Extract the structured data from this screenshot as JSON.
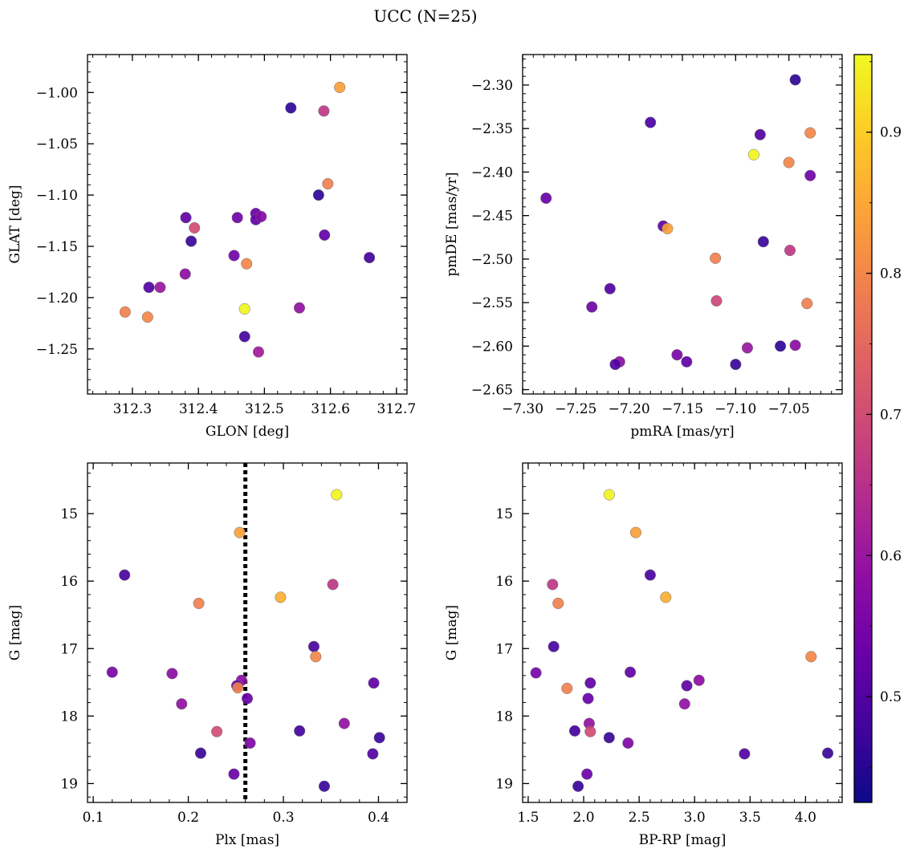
{
  "figure": {
    "title": "UCC (N=25)"
  },
  "colorbar": {
    "cmap": "plasma",
    "range": [
      0.425,
      0.955
    ],
    "ticks": [
      "0.5",
      "0.6",
      "0.7",
      "0.8",
      "0.9"
    ]
  },
  "chart_data": [
    {
      "type": "scatter",
      "xlabel": "GLON [deg]",
      "ylabel": "GLAT [deg]",
      "xlim": [
        312.232,
        312.716
      ],
      "ylim": [
        -1.294,
        -0.963
      ],
      "y_inverted": false,
      "xticks": [
        "312.3",
        "312.4",
        "312.5",
        "312.6",
        "312.7"
      ],
      "yticks": [
        "−1.00",
        "−1.05",
        "−1.10",
        "−1.15",
        "−1.20",
        "−1.25"
      ],
      "points": [
        {
          "x": 312.54,
          "y": -1.015,
          "c": 0.46
        },
        {
          "x": 312.614,
          "y": -0.995,
          "c": 0.84
        },
        {
          "x": 312.59,
          "y": -1.018,
          "c": 0.66
        },
        {
          "x": 312.596,
          "y": -1.089,
          "c": 0.79
        },
        {
          "x": 312.582,
          "y": -1.1,
          "c": 0.46
        },
        {
          "x": 312.381,
          "y": -1.122,
          "c": 0.52
        },
        {
          "x": 312.394,
          "y": -1.132,
          "c": 0.7
        },
        {
          "x": 312.389,
          "y": -1.145,
          "c": 0.47
        },
        {
          "x": 312.459,
          "y": -1.122,
          "c": 0.54
        },
        {
          "x": 312.487,
          "y": -1.118,
          "c": 0.53
        },
        {
          "x": 312.487,
          "y": -1.124,
          "c": 0.52
        },
        {
          "x": 312.495,
          "y": -1.121,
          "c": 0.57
        },
        {
          "x": 312.591,
          "y": -1.139,
          "c": 0.52
        },
        {
          "x": 312.659,
          "y": -1.161,
          "c": 0.48
        },
        {
          "x": 312.454,
          "y": -1.159,
          "c": 0.54
        },
        {
          "x": 312.473,
          "y": -1.167,
          "c": 0.8
        },
        {
          "x": 312.38,
          "y": -1.177,
          "c": 0.58
        },
        {
          "x": 312.325,
          "y": -1.19,
          "c": 0.5
        },
        {
          "x": 312.342,
          "y": -1.19,
          "c": 0.6
        },
        {
          "x": 312.47,
          "y": -1.211,
          "c": 0.95
        },
        {
          "x": 312.553,
          "y": -1.21,
          "c": 0.59
        },
        {
          "x": 312.289,
          "y": -1.214,
          "c": 0.79
        },
        {
          "x": 312.323,
          "y": -1.219,
          "c": 0.8
        },
        {
          "x": 312.47,
          "y": -1.238,
          "c": 0.48
        },
        {
          "x": 312.491,
          "y": -1.253,
          "c": 0.61
        }
      ]
    },
    {
      "type": "scatter",
      "xlabel": "pmRA [mas/yr]",
      "ylabel": "pmDE [mas/yr]",
      "xlim": [
        -7.3,
        -7.0
      ],
      "ylim": [
        -2.655,
        -2.265
      ],
      "y_inverted": false,
      "xticks": [
        "−7.30",
        "−7.25",
        "−7.20",
        "−7.15",
        "−7.10",
        "−7.05"
      ],
      "yticks": [
        "−2.30",
        "−2.35",
        "−2.40",
        "−2.45",
        "−2.50",
        "−2.55",
        "−2.60",
        "−2.65"
      ],
      "points": [
        {
          "x": -7.044,
          "y": -2.294,
          "c": 0.46
        },
        {
          "x": -7.18,
          "y": -2.343,
          "c": 0.49
        },
        {
          "x": -7.077,
          "y": -2.357,
          "c": 0.5
        },
        {
          "x": -7.03,
          "y": -2.355,
          "c": 0.8
        },
        {
          "x": -7.083,
          "y": -2.38,
          "c": 0.95
        },
        {
          "x": -7.05,
          "y": -2.389,
          "c": 0.8
        },
        {
          "x": -7.03,
          "y": -2.404,
          "c": 0.54
        },
        {
          "x": -7.278,
          "y": -2.43,
          "c": 0.53
        },
        {
          "x": -7.168,
          "y": -2.462,
          "c": 0.52
        },
        {
          "x": -7.164,
          "y": -2.465,
          "c": 0.84
        },
        {
          "x": -7.074,
          "y": -2.48,
          "c": 0.47
        },
        {
          "x": -7.049,
          "y": -2.49,
          "c": 0.66
        },
        {
          "x": -7.119,
          "y": -2.499,
          "c": 0.79
        },
        {
          "x": -7.218,
          "y": -2.534,
          "c": 0.5
        },
        {
          "x": -7.235,
          "y": -2.555,
          "c": 0.54
        },
        {
          "x": -7.118,
          "y": -2.548,
          "c": 0.69
        },
        {
          "x": -7.033,
          "y": -2.551,
          "c": 0.79
        },
        {
          "x": -7.155,
          "y": -2.61,
          "c": 0.55
        },
        {
          "x": -7.146,
          "y": -2.618,
          "c": 0.52
        },
        {
          "x": -7.209,
          "y": -2.618,
          "c": 0.58
        },
        {
          "x": -7.213,
          "y": -2.621,
          "c": 0.5
        },
        {
          "x": -7.1,
          "y": -2.621,
          "c": 0.47
        },
        {
          "x": -7.089,
          "y": -2.602,
          "c": 0.6
        },
        {
          "x": -7.058,
          "y": -2.6,
          "c": 0.46
        },
        {
          "x": -7.044,
          "y": -2.599,
          "c": 0.58
        }
      ]
    },
    {
      "type": "scatter",
      "xlabel": "Plx [mas]",
      "ylabel": "G [mag]",
      "xlim": [
        0.094,
        0.43
      ],
      "ylim": [
        19.28,
        14.25
      ],
      "y_inverted": true,
      "xticks": [
        "0.1",
        "0.2",
        "0.3",
        "0.4"
      ],
      "yticks": [
        "15",
        "16",
        "17",
        "18",
        "19"
      ],
      "vline": {
        "x": 0.26,
        "style": "dotted"
      },
      "points": [
        {
          "x": 0.356,
          "y": 14.72,
          "c": 0.95
        },
        {
          "x": 0.254,
          "y": 15.28,
          "c": 0.84
        },
        {
          "x": 0.133,
          "y": 15.91,
          "c": 0.49
        },
        {
          "x": 0.352,
          "y": 16.05,
          "c": 0.66
        },
        {
          "x": 0.211,
          "y": 16.33,
          "c": 0.79
        },
        {
          "x": 0.297,
          "y": 16.24,
          "c": 0.86
        },
        {
          "x": 0.332,
          "y": 16.97,
          "c": 0.49
        },
        {
          "x": 0.334,
          "y": 17.12,
          "c": 0.8
        },
        {
          "x": 0.12,
          "y": 17.35,
          "c": 0.55
        },
        {
          "x": 0.183,
          "y": 17.37,
          "c": 0.58
        },
        {
          "x": 0.256,
          "y": 17.47,
          "c": 0.58
        },
        {
          "x": 0.251,
          "y": 17.55,
          "c": 0.52
        },
        {
          "x": 0.252,
          "y": 17.58,
          "c": 0.79
        },
        {
          "x": 0.395,
          "y": 17.51,
          "c": 0.52
        },
        {
          "x": 0.262,
          "y": 17.74,
          "c": 0.53
        },
        {
          "x": 0.193,
          "y": 17.82,
          "c": 0.59
        },
        {
          "x": 0.364,
          "y": 18.11,
          "c": 0.59
        },
        {
          "x": 0.23,
          "y": 18.23,
          "c": 0.7
        },
        {
          "x": 0.317,
          "y": 18.22,
          "c": 0.48
        },
        {
          "x": 0.401,
          "y": 18.32,
          "c": 0.47
        },
        {
          "x": 0.265,
          "y": 18.4,
          "c": 0.56
        },
        {
          "x": 0.213,
          "y": 18.55,
          "c": 0.47
        },
        {
          "x": 0.394,
          "y": 18.56,
          "c": 0.5
        },
        {
          "x": 0.248,
          "y": 18.86,
          "c": 0.53
        },
        {
          "x": 0.343,
          "y": 19.04,
          "c": 0.47
        }
      ]
    },
    {
      "type": "scatter",
      "xlabel": "BP-RP [mag]",
      "ylabel": "G [mag]",
      "xlim": [
        1.45,
        4.33
      ],
      "ylim": [
        19.28,
        14.25
      ],
      "y_inverted": true,
      "xticks": [
        "1.5",
        "2.0",
        "2.5",
        "3.0",
        "3.5",
        "4.0"
      ],
      "yticks": [
        "15",
        "16",
        "17",
        "18",
        "19"
      ],
      "points": [
        {
          "x": 2.23,
          "y": 14.72,
          "c": 0.95
        },
        {
          "x": 2.47,
          "y": 15.28,
          "c": 0.84
        },
        {
          "x": 1.72,
          "y": 16.05,
          "c": 0.66
        },
        {
          "x": 2.6,
          "y": 15.91,
          "c": 0.49
        },
        {
          "x": 1.77,
          "y": 16.33,
          "c": 0.79
        },
        {
          "x": 2.74,
          "y": 16.24,
          "c": 0.86
        },
        {
          "x": 1.73,
          "y": 16.97,
          "c": 0.49
        },
        {
          "x": 4.05,
          "y": 17.12,
          "c": 0.8
        },
        {
          "x": 1.57,
          "y": 17.36,
          "c": 0.55
        },
        {
          "x": 2.42,
          "y": 17.35,
          "c": 0.52
        },
        {
          "x": 2.06,
          "y": 17.51,
          "c": 0.52
        },
        {
          "x": 2.93,
          "y": 17.55,
          "c": 0.52
        },
        {
          "x": 3.04,
          "y": 17.47,
          "c": 0.58
        },
        {
          "x": 1.85,
          "y": 17.59,
          "c": 0.79
        },
        {
          "x": 2.04,
          "y": 17.74,
          "c": 0.53
        },
        {
          "x": 2.91,
          "y": 17.82,
          "c": 0.59
        },
        {
          "x": 2.05,
          "y": 18.11,
          "c": 0.59
        },
        {
          "x": 2.06,
          "y": 18.23,
          "c": 0.7
        },
        {
          "x": 1.92,
          "y": 18.22,
          "c": 0.48
        },
        {
          "x": 2.23,
          "y": 18.32,
          "c": 0.47
        },
        {
          "x": 2.4,
          "y": 18.4,
          "c": 0.56
        },
        {
          "x": 3.45,
          "y": 18.56,
          "c": 0.5
        },
        {
          "x": 4.2,
          "y": 18.55,
          "c": 0.47
        },
        {
          "x": 2.03,
          "y": 18.86,
          "c": 0.53
        },
        {
          "x": 1.95,
          "y": 19.04,
          "c": 0.47
        }
      ]
    }
  ]
}
